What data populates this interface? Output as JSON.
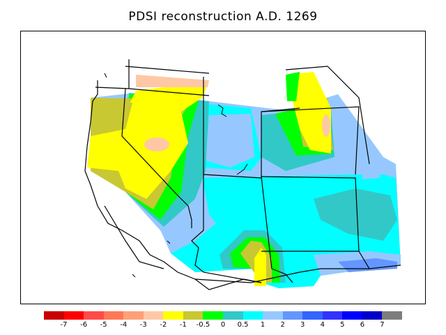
{
  "title": "PDSI reconstruction A.D. 1269",
  "legend": {
    "colors": [
      "#c80000",
      "#ff0000",
      "#ff4b4b",
      "#ff7855",
      "#ffa078",
      "#ffc8a5",
      "#ffff00",
      "#c8c832",
      "#00ff00",
      "#32c8c8",
      "#00ffff",
      "#96c8ff",
      "#6496ff",
      "#3264ff",
      "#3232ff",
      "#0000ff",
      "#0000c8",
      "#7d7d7d"
    ],
    "ticks": [
      "-7",
      "-6",
      "-5",
      "-4",
      "-3",
      "-2",
      "-1",
      "-0.5",
      "0",
      "0.5",
      "1",
      "2",
      "3",
      "4",
      "5",
      "6",
      "7"
    ]
  },
  "map": {
    "colors": {
      "light_blue": "#96c8ff",
      "cyan": "#00ffff",
      "teal": "#32c8c8",
      "green": "#00ff00",
      "olive": "#c8c832",
      "yellow": "#ffff00",
      "peach": "#ffc8a5",
      "blue": "#6496ff"
    }
  }
}
